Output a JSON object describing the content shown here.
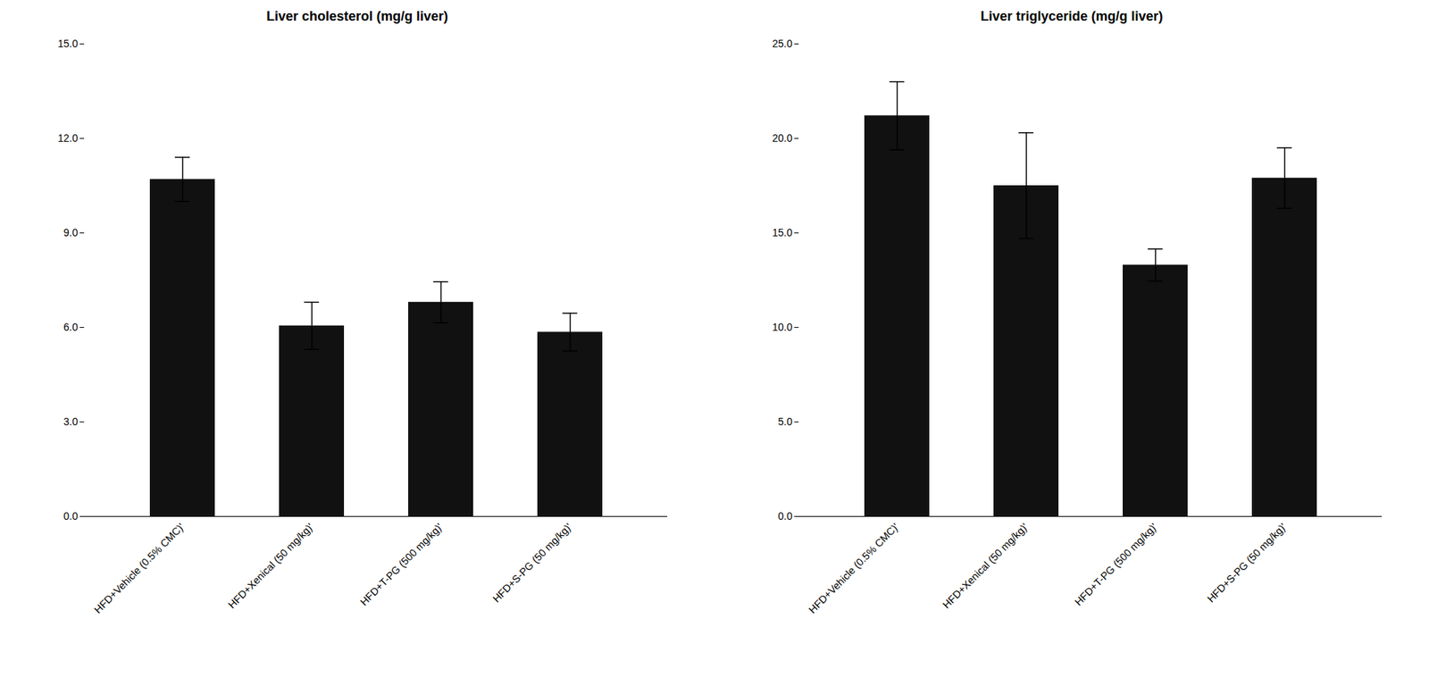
{
  "chart_data": [
    {
      "type": "bar",
      "title": "Liver cholesterol (mg/g liver)",
      "categories": [
        "HFD+Vehicle (0.5% CMC)'",
        "HFD+Xenical (50 mg/kg)'",
        "HFD+T-PG (500 mg/kg)'",
        "HFD+S-PG (50 mg/kg)'"
      ],
      "values": [
        10.7,
        6.05,
        6.8,
        5.85
      ],
      "errors": [
        0.7,
        0.75,
        0.65,
        0.6
      ],
      "color": "#111111",
      "ylim": [
        0,
        15.0
      ],
      "yticks": [
        {
          "value": 0.0,
          "label": "0.0"
        },
        {
          "value": 3.0,
          "label": "3.0"
        },
        {
          "value": 6.0,
          "label": "6.0"
        },
        {
          "value": 9.0,
          "label": "9.0"
        },
        {
          "value": 12.0,
          "label": "12.0"
        },
        {
          "value": 15.0,
          "label": "15.0"
        }
      ],
      "grid": false
    },
    {
      "type": "bar",
      "title": "Liver triglyceride (mg/g liver)",
      "categories": [
        "HFD+Vehicle (0.5% CMC)'",
        "HFD+Xenical (50 mg/kg)'",
        "HFD+T-PG (500 mg/kg)'",
        "HFD+S-PG (50 mg/kg)'"
      ],
      "values": [
        21.2,
        17.5,
        13.3,
        17.9
      ],
      "errors": [
        1.8,
        2.8,
        0.85,
        1.6
      ],
      "color": "#111111",
      "ylim": [
        0,
        25.0
      ],
      "yticks": [
        {
          "value": 0.0,
          "label": "0.0"
        },
        {
          "value": 5.0,
          "label": "5.0"
        },
        {
          "value": 10.0,
          "label": "10.0"
        },
        {
          "value": 15.0,
          "label": "15.0"
        },
        {
          "value": 20.0,
          "label": "20.0"
        },
        {
          "value": 25.0,
          "label": "25.0"
        }
      ],
      "grid": false
    }
  ]
}
